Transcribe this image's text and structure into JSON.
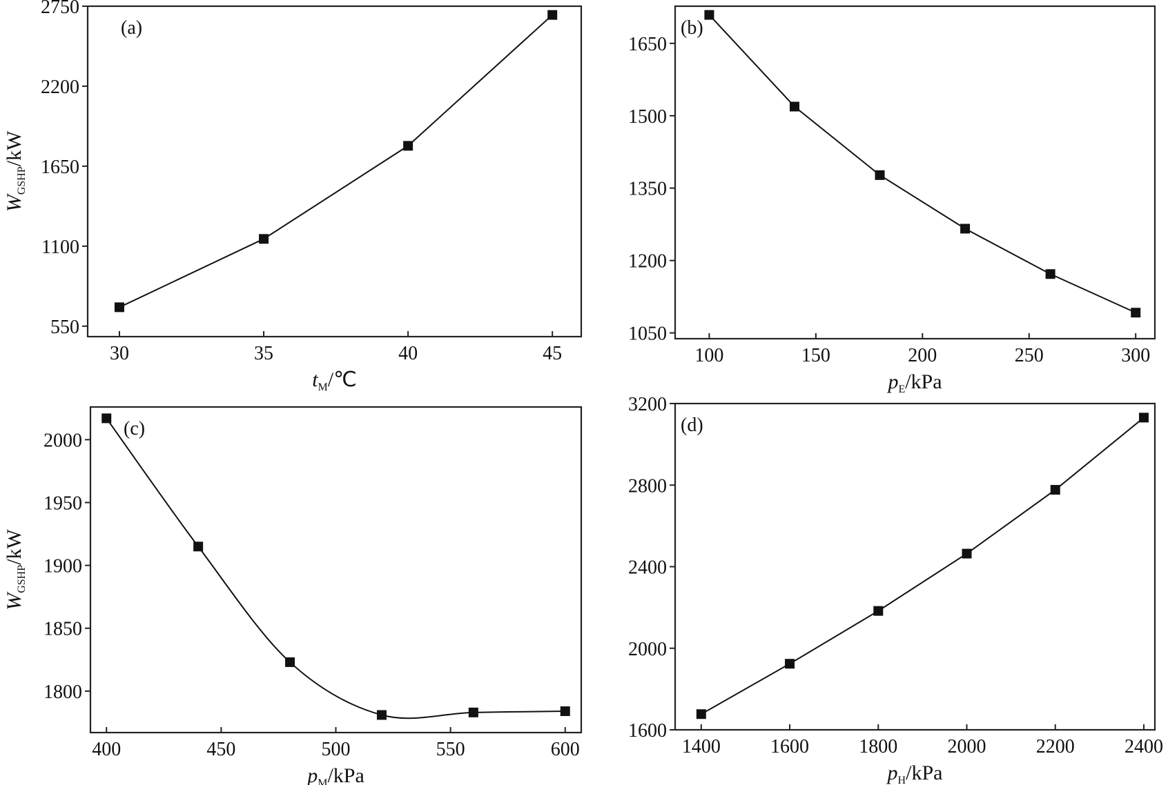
{
  "chart_data": [
    {
      "type": "line",
      "panel_label": "(a)",
      "xlabel": {
        "var": "t",
        "sub": "M",
        "unit": "/℃"
      },
      "ylabel": {
        "var": "W",
        "sub": "GSHP",
        "unit": "/kW"
      },
      "x": [
        30,
        35,
        40,
        45
      ],
      "y": [
        680,
        1150,
        1790,
        2690
      ],
      "xlim": [
        28.9,
        46.0
      ],
      "ylim": [
        478,
        2750
      ],
      "xticks": [
        30,
        35,
        40,
        45
      ],
      "yticks": [
        550,
        1100,
        1650,
        2200,
        2750
      ],
      "smooth": false,
      "marker": "square",
      "grid": false
    },
    {
      "type": "line",
      "panel_label": "(b)",
      "xlabel": {
        "var": "p",
        "sub": "E",
        "unit": "/kPa"
      },
      "x": [
        100,
        140,
        180,
        220,
        260,
        300
      ],
      "y": [
        1709,
        1519,
        1377,
        1266,
        1172,
        1092
      ],
      "xlim": [
        84,
        309
      ],
      "ylim": [
        1038,
        1727
      ],
      "xticks": [
        100,
        150,
        200,
        250,
        300
      ],
      "yticks": [
        1050,
        1200,
        1350,
        1500,
        1650
      ],
      "smooth": false,
      "marker": "square",
      "grid": false
    },
    {
      "type": "line",
      "panel_label": "(c)",
      "xlabel": {
        "var": "p",
        "sub": "M",
        "unit": "/kPa"
      },
      "ylabel": {
        "var": "W",
        "sub": "GSHP",
        "unit": "/kW"
      },
      "x": [
        400,
        440,
        480,
        520,
        560,
        600
      ],
      "y": [
        2017,
        1915,
        1823,
        1781,
        1783,
        1784
      ],
      "xlim": [
        393,
        607
      ],
      "ylim": [
        1767,
        2026
      ],
      "xticks": [
        400,
        450,
        500,
        550,
        600
      ],
      "yticks": [
        1800,
        1850,
        1900,
        1950,
        2000
      ],
      "smooth": true,
      "marker": "square",
      "grid": false
    },
    {
      "type": "line",
      "panel_label": "(d)",
      "xlabel": {
        "var": "p",
        "sub": "H",
        "unit": "/kPa"
      },
      "x": [
        1400,
        1600,
        1800,
        2000,
        2200,
        2400
      ],
      "y": [
        1677,
        1924,
        2183,
        2464,
        2777,
        3131
      ],
      "xlim": [
        1341,
        2425
      ],
      "ylim": [
        1600,
        3200
      ],
      "xticks": [
        1400,
        1600,
        1800,
        2000,
        2200,
        2400
      ],
      "yticks": [
        1600,
        2000,
        2400,
        2800,
        3200
      ],
      "smooth": false,
      "marker": "square",
      "grid": false
    }
  ]
}
